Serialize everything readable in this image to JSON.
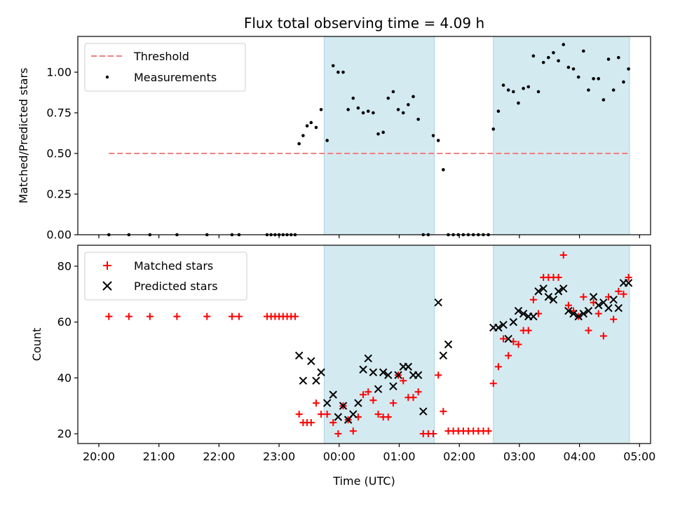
{
  "chart_data": [
    {
      "type": "scatter",
      "title": "Flux total observing time = 4.09 h",
      "ylabel": "Matched/Predicted stars",
      "ylim": [
        0,
        1.22
      ],
      "yticks": [
        "0.00",
        "0.25",
        "0.50",
        "0.75",
        "1.00"
      ],
      "shaded_intervals": [
        [
          "23:45",
          "01:35"
        ],
        [
          "02:34",
          "04:50"
        ]
      ],
      "shade_color": "#d4eaf1",
      "threshold": {
        "name": "Threshold",
        "value": 0.5,
        "x_range": [
          "20:10",
          "04:50"
        ],
        "color": "#f08080"
      },
      "legend": [
        "Threshold",
        "Measurements"
      ],
      "legend_position": "upper-left",
      "series": [
        {
          "name": "Measurements",
          "color": "#000000",
          "marker": "dot",
          "x": [
            "20:10",
            "20:30",
            "20:51",
            "21:18",
            "21:48",
            "22:13",
            "22:20",
            "22:48",
            "22:52",
            "22:56",
            "23:00",
            "23:04",
            "23:08",
            "23:12",
            "23:16",
            "23:20",
            "23:24",
            "23:28",
            "23:32",
            "23:37",
            "23:42",
            "23:48",
            "23:54",
            "23:59",
            "00:04",
            "00:09",
            "00:14",
            "00:19",
            "00:24",
            "00:29",
            "00:34",
            "00:39",
            "00:44",
            "00:49",
            "00:54",
            "00:59",
            "01:04",
            "01:09",
            "01:14",
            "01:19",
            "01:24",
            "01:29",
            "01:34",
            "01:39",
            "01:44",
            "01:49",
            "01:54",
            "01:59",
            "02:04",
            "02:09",
            "02:14",
            "02:19",
            "02:24",
            "02:29",
            "02:34",
            "02:39",
            "02:44",
            "02:49",
            "02:54",
            "02:59",
            "03:04",
            "03:09",
            "03:14",
            "03:19",
            "03:24",
            "03:29",
            "03:34",
            "03:39",
            "03:44",
            "03:49",
            "03:54",
            "03:59",
            "04:04",
            "04:09",
            "04:14",
            "04:19",
            "04:24",
            "04:29",
            "04:34",
            "04:39",
            "04:44",
            "04:49"
          ],
          "y": [
            0,
            0,
            0,
            0,
            0,
            0,
            0,
            0,
            0,
            0,
            0,
            0,
            0,
            0,
            0,
            0.56,
            0.61,
            0.67,
            0.69,
            0.66,
            0.77,
            0.58,
            1.04,
            1.0,
            1.0,
            0.77,
            0.84,
            0.78,
            0.75,
            0.76,
            0.75,
            0.62,
            0.63,
            0.84,
            0.88,
            0.77,
            0.75,
            0.8,
            0.85,
            0.71,
            0,
            0,
            0.61,
            0.58,
            0.4,
            0,
            0,
            0,
            0,
            0,
            0,
            0,
            0,
            0,
            0.65,
            0.76,
            0.92,
            0.89,
            0.88,
            0.81,
            0.9,
            0.91,
            1.1,
            0.88,
            1.06,
            1.09,
            1.12,
            1.07,
            1.17,
            1.03,
            1.02,
            0.97,
            1.13,
            0.89,
            0.96,
            0.96,
            0.83,
            1.08,
            0.89,
            1.09,
            0.94,
            1.02
          ]
        }
      ]
    },
    {
      "type": "scatter",
      "xlabel": "Time (UTC)",
      "ylabel": "Count",
      "ylim": [
        16.5,
        87.5
      ],
      "yticks": [
        "20",
        "40",
        "60",
        "80"
      ],
      "xticks": [
        "20:00",
        "21:00",
        "22:00",
        "23:00",
        "00:00",
        "01:00",
        "02:00",
        "03:00",
        "04:00",
        "05:00"
      ],
      "legend": [
        "Matched stars",
        "Predicted stars"
      ],
      "legend_position": "upper-left",
      "series": [
        {
          "name": "Matched stars",
          "color": "#ff0000",
          "marker": "plus",
          "x": [
            "20:10",
            "20:30",
            "20:51",
            "21:18",
            "21:48",
            "22:13",
            "22:20",
            "22:48",
            "22:52",
            "22:56",
            "23:00",
            "23:04",
            "23:08",
            "23:12",
            "23:16",
            "23:20",
            "23:24",
            "23:28",
            "23:32",
            "23:37",
            "23:42",
            "23:48",
            "23:54",
            "23:59",
            "00:04",
            "00:09",
            "00:14",
            "00:19",
            "00:24",
            "00:29",
            "00:34",
            "00:39",
            "00:44",
            "00:49",
            "00:54",
            "00:59",
            "01:04",
            "01:09",
            "01:14",
            "01:19",
            "01:24",
            "01:29",
            "01:34",
            "01:39",
            "01:44",
            "01:49",
            "01:54",
            "01:59",
            "02:04",
            "02:09",
            "02:14",
            "02:19",
            "02:24",
            "02:29",
            "02:34",
            "02:39",
            "02:44",
            "02:49",
            "02:54",
            "02:59",
            "03:04",
            "03:09",
            "03:14",
            "03:19",
            "03:24",
            "03:29",
            "03:34",
            "03:39",
            "03:44",
            "03:49",
            "03:54",
            "03:59",
            "04:04",
            "04:09",
            "04:14",
            "04:19",
            "04:24",
            "04:29",
            "04:34",
            "04:39",
            "04:44",
            "04:49"
          ],
          "y": [
            62,
            62,
            62,
            62,
            62,
            62,
            62,
            62,
            62,
            62,
            62,
            62,
            62,
            62,
            62,
            27,
            24,
            24,
            24,
            31,
            27,
            27,
            24,
            20,
            30,
            25,
            21,
            26,
            34,
            35,
            32,
            27,
            26,
            26,
            31,
            41,
            39,
            33,
            33,
            35,
            20,
            20,
            20,
            41,
            28,
            21,
            21,
            21,
            21,
            21,
            21,
            21,
            21,
            21,
            38,
            44,
            54,
            48,
            53,
            52,
            57,
            57,
            68,
            63,
            76,
            76,
            76,
            76,
            84,
            66,
            64,
            62,
            69,
            57,
            67,
            63,
            55,
            69,
            61,
            71,
            70,
            76
          ]
        },
        {
          "name": "Predicted stars",
          "color": "#000000",
          "marker": "x",
          "x": [
            "23:20",
            "23:24",
            "23:32",
            "23:37",
            "23:42",
            "23:48",
            "23:54",
            "23:59",
            "00:04",
            "00:09",
            "00:14",
            "00:19",
            "00:24",
            "00:29",
            "00:34",
            "00:39",
            "00:44",
            "00:49",
            "00:54",
            "00:59",
            "01:04",
            "01:09",
            "01:14",
            "01:19",
            "01:24",
            "01:39",
            "01:44",
            "01:49",
            "02:34",
            "02:39",
            "02:44",
            "02:49",
            "02:54",
            "02:59",
            "03:04",
            "03:09",
            "03:14",
            "03:19",
            "03:24",
            "03:29",
            "03:34",
            "03:39",
            "03:44",
            "03:49",
            "03:54",
            "03:59",
            "04:04",
            "04:09",
            "04:14",
            "04:19",
            "04:24",
            "04:29",
            "04:34",
            "04:39",
            "04:44",
            "04:49"
          ],
          "y": [
            48,
            39,
            46,
            39,
            42,
            31,
            34,
            26,
            30,
            25,
            27,
            31,
            43,
            47,
            42,
            36,
            42,
            41,
            37,
            41,
            44,
            44,
            41,
            41,
            28,
            67,
            48,
            52,
            58,
            58,
            59,
            54,
            60,
            64,
            63,
            62,
            62,
            71,
            72,
            69,
            68,
            71,
            72,
            64,
            63,
            62,
            63,
            64,
            69,
            66,
            67,
            65,
            68,
            65,
            74,
            74
          ]
        }
      ]
    }
  ]
}
